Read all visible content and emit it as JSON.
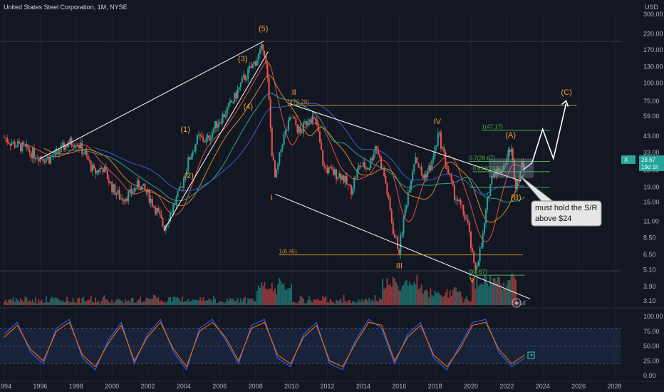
{
  "header": {
    "title": "United States Steel Corporation, 1M, NYSE",
    "currency": "USD"
  },
  "price_badge": {
    "symbol": "X",
    "value": "28.67",
    "countdown": "19d 1h"
  },
  "colors": {
    "background": "#131722",
    "grid": "#1f2433",
    "up": "#26a69a",
    "down": "#ef5350",
    "wave": "#f0a038",
    "fib_orange": "#c8862e",
    "fib_green": "#4caf50",
    "channel": "#ffffff",
    "ma_teal": "#26a69a",
    "ma_red": "#e05040",
    "ma_orange": "#d08a2a",
    "ma_blue": "#3a5ed0",
    "rsi_blue": "#2962ff",
    "rsi_orange": "#ff6d00",
    "rsi_band": "#1c2a4a"
  },
  "chart_data": [
    {
      "type": "candlestick",
      "title": "United States Steel Corporation, 1M, NYSE",
      "xlim": [
        1994,
        2030
      ],
      "x_ticks": [
        "1994",
        "1996",
        "1998",
        "2000",
        "2002",
        "2004",
        "2006",
        "2008",
        "2010",
        "2012",
        "2014",
        "2016",
        "2018",
        "2020",
        "2022",
        "2024",
        "2026",
        "2028"
      ],
      "y_scale": "log",
      "y_ticks": [
        "300.00",
        "220.00",
        "170.00",
        "130.00",
        "100.00",
        "75.00",
        "59.00",
        "43.00",
        "33.00",
        "25.00",
        "19.00",
        "15.00",
        "11.00",
        "8.50",
        "6.50",
        "5.10",
        "3.90",
        "3.10"
      ],
      "series_close": [
        [
          1994.0,
          42
        ],
        [
          1994.5,
          38
        ],
        [
          1995.0,
          36
        ],
        [
          1995.5,
          33
        ],
        [
          1996.0,
          31
        ],
        [
          1996.5,
          30
        ],
        [
          1997.0,
          33
        ],
        [
          1997.5,
          38
        ],
        [
          1998.0,
          40
        ],
        [
          1998.5,
          32
        ],
        [
          1999.0,
          24
        ],
        [
          1999.5,
          26
        ],
        [
          2000.0,
          19
        ],
        [
          2000.5,
          16
        ],
        [
          2001.0,
          17
        ],
        [
          2001.5,
          20
        ],
        [
          2002.0,
          17
        ],
        [
          2002.5,
          13
        ],
        [
          2002.9,
          10
        ],
        [
          2003.3,
          13
        ],
        [
          2003.8,
          18
        ],
        [
          2004.3,
          30
        ],
        [
          2004.8,
          42
        ],
        [
          2005.3,
          40
        ],
        [
          2005.8,
          52
        ],
        [
          2006.3,
          62
        ],
        [
          2006.8,
          78
        ],
        [
          2007.3,
          105
        ],
        [
          2007.8,
          130
        ],
        [
          2008.3,
          165
        ],
        [
          2008.45,
          190
        ],
        [
          2008.7,
          95
        ],
        [
          2008.9,
          35
        ],
        [
          2009.1,
          21
        ],
        [
          2009.5,
          40
        ],
        [
          2010.0,
          58
        ],
        [
          2010.5,
          45
        ],
        [
          2011.0,
          60
        ],
        [
          2011.4,
          52
        ],
        [
          2011.8,
          26
        ],
        [
          2012.3,
          24
        ],
        [
          2012.8,
          23
        ],
        [
          2013.3,
          18
        ],
        [
          2013.8,
          27
        ],
        [
          2014.3,
          26
        ],
        [
          2014.7,
          38
        ],
        [
          2015.2,
          22
        ],
        [
          2015.7,
          9
        ],
        [
          2016.0,
          7
        ],
        [
          2016.4,
          15
        ],
        [
          2016.9,
          32
        ],
        [
          2017.3,
          22
        ],
        [
          2017.8,
          27
        ],
        [
          2018.2,
          45
        ],
        [
          2018.6,
          28
        ],
        [
          2019.0,
          18
        ],
        [
          2019.4,
          14
        ],
        [
          2019.8,
          11
        ],
        [
          2020.2,
          5
        ],
        [
          2020.6,
          7.5
        ],
        [
          2021.0,
          18
        ],
        [
          2021.3,
          26
        ],
        [
          2021.6,
          24
        ],
        [
          2022.0,
          30
        ],
        [
          2022.2,
          37
        ],
        [
          2022.5,
          20
        ],
        [
          2022.8,
          26
        ],
        [
          2023.0,
          28.67
        ]
      ],
      "volume_note": "monthly volume histogram",
      "annotations": [
        {
          "text": "(5)",
          "x": 2008.45,
          "y": 230
        },
        {
          "text": "(3)",
          "x": 2007.3,
          "y": 142
        },
        {
          "text": "(4)",
          "x": 2007.6,
          "y": 66
        },
        {
          "text": "(1)",
          "x": 2004.1,
          "y": 46
        },
        {
          "text": "(2)",
          "x": 2004.3,
          "y": 22
        },
        {
          "text": "II",
          "x": 2010.3,
          "y": 83
        },
        {
          "text": "I",
          "x": 2009.1,
          "y": 15.5
        },
        {
          "text": "IV",
          "x": 2018.2,
          "y": 52
        },
        {
          "text": "III",
          "x": 2016.1,
          "y": 5.2
        },
        {
          "text": "V",
          "x": 2020.2,
          "y": 4.15
        },
        {
          "text": "(A)",
          "x": 2022.2,
          "y": 42
        },
        {
          "text": "(B)",
          "x": 2022.5,
          "y": 15.5
        },
        {
          "text": "(C)",
          "x": 2025.3,
          "y": 83
        }
      ],
      "fib_labels": [
        {
          "text": "0(70.28)",
          "y": 70.28,
          "x": 2009.8
        },
        {
          "text": "1(6.45)",
          "y": 6.45,
          "x": 2009.3
        },
        {
          "text": "1(47.17)",
          "y": 47.17,
          "x": 2020.6
        },
        {
          "text": "0.7(28.67)",
          "y": 28.67,
          "x": 2019.9
        },
        {
          "text": "0.618(24.33)",
          "y": 24.33,
          "x": 2020.1
        },
        {
          "text": "0(4.67)",
          "y": 4.67,
          "x": 2019.9
        }
      ],
      "callout": "must hold the S/R\nabove $24"
    },
    {
      "type": "line",
      "title": "",
      "ylim": [
        0,
        100
      ],
      "y_ticks": [
        "100.00",
        "75.00",
        "50.00",
        "25.00",
        "0.00"
      ],
      "band": [
        20,
        80
      ],
      "series": [
        {
          "values": [
            70,
            90,
            40,
            20,
            80,
            95,
            30,
            10,
            60,
            90,
            20,
            70,
            95,
            40,
            10,
            80,
            95,
            60,
            20,
            85,
            95,
            30,
            15,
            70,
            90,
            20,
            10,
            60,
            95,
            80,
            20,
            70,
            90,
            30,
            10,
            50,
            90,
            95,
            40,
            15,
            30
          ]
        },
        {
          "values": [
            65,
            85,
            45,
            25,
            75,
            90,
            35,
            15,
            55,
            85,
            25,
            65,
            90,
            45,
            15,
            75,
            90,
            65,
            25,
            80,
            90,
            35,
            20,
            65,
            85,
            25,
            15,
            55,
            90,
            85,
            25,
            65,
            85,
            35,
            15,
            45,
            85,
            90,
            45,
            20,
            35
          ]
        }
      ]
    }
  ]
}
